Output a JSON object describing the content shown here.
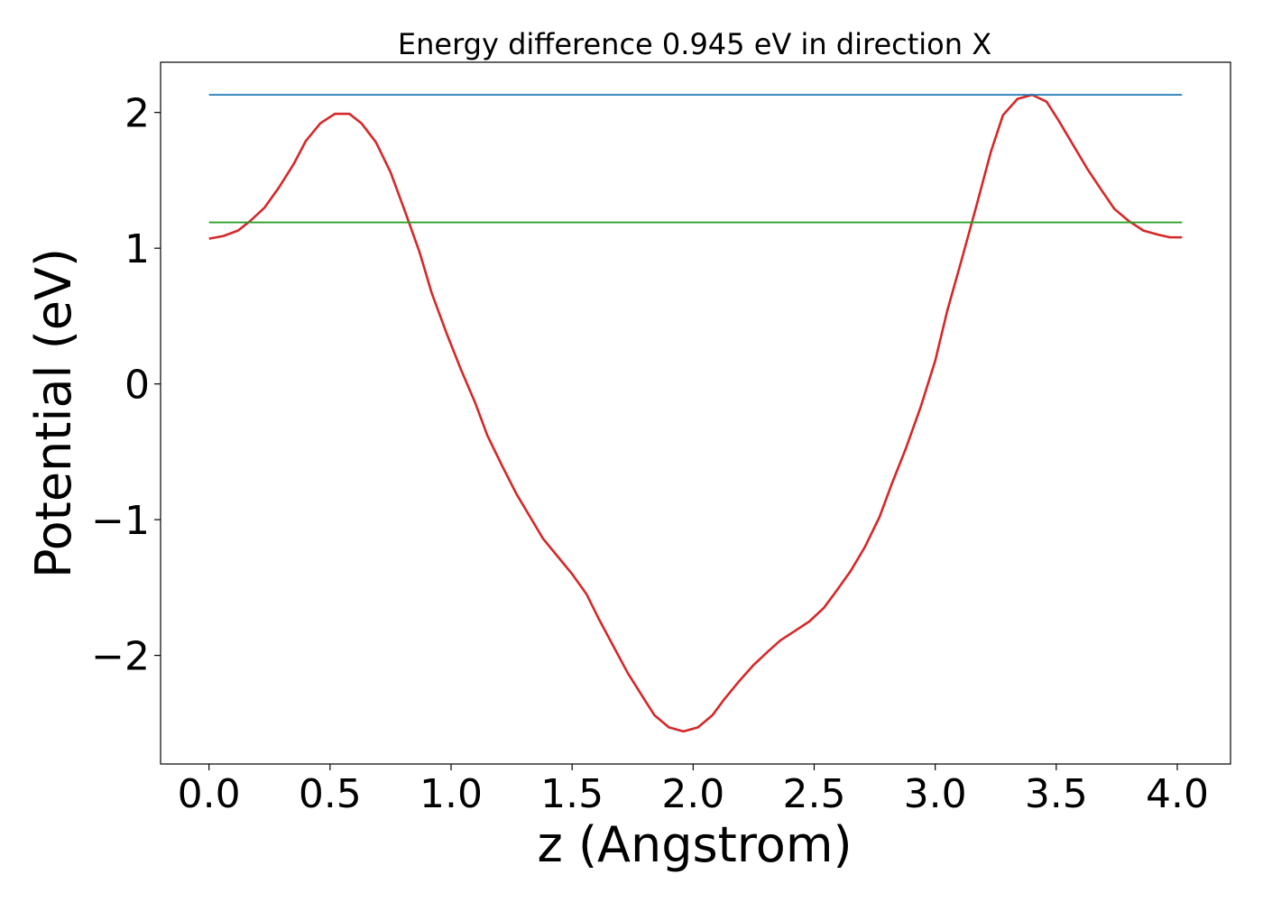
{
  "chart_data": {
    "type": "line",
    "title": "Energy difference 0.945 eV in direction X",
    "xlabel": "z (Angstrom)",
    "ylabel": "Potential (eV)",
    "xlim": [
      -0.2,
      4.22
    ],
    "ylim": [
      -2.8,
      2.37
    ],
    "xticks": [
      0.0,
      0.5,
      1.0,
      1.5,
      2.0,
      2.5,
      3.0,
      3.5,
      4.0
    ],
    "xtick_labels": [
      "0.0",
      "0.5",
      "1.0",
      "1.5",
      "2.0",
      "2.5",
      "3.0",
      "3.5",
      "4.0"
    ],
    "yticks": [
      -2,
      -1,
      0,
      1,
      2
    ],
    "ytick_labels": [
      "−2",
      "−1",
      "0",
      "1",
      "2"
    ],
    "grid": false,
    "series": [
      {
        "color": "#d62728",
        "x": [
          0.0,
          0.06,
          0.12,
          0.17,
          0.23,
          0.29,
          0.35,
          0.4,
          0.46,
          0.52,
          0.58,
          0.63,
          0.69,
          0.75,
          0.81,
          0.87,
          0.92,
          0.98,
          1.04,
          1.1,
          1.15,
          1.21,
          1.27,
          1.33,
          1.38,
          1.44,
          1.5,
          1.56,
          1.61,
          1.67,
          1.73,
          1.79,
          1.84,
          1.9,
          1.96,
          2.02,
          2.08,
          2.13,
          2.19,
          2.25,
          2.31,
          2.36,
          2.42,
          2.48,
          2.54,
          2.59,
          2.65,
          2.71,
          2.77,
          2.82,
          2.88,
          2.94,
          3.0,
          3.05,
          3.11,
          3.17,
          3.23,
          3.28,
          3.34,
          3.4,
          3.46,
          3.51,
          3.57,
          3.63,
          3.69,
          3.74,
          3.8,
          3.86,
          3.92,
          3.97,
          4.02
        ],
        "y": [
          1.07,
          1.09,
          1.13,
          1.2,
          1.3,
          1.45,
          1.62,
          1.79,
          1.92,
          1.99,
          1.99,
          1.92,
          1.78,
          1.56,
          1.27,
          0.97,
          0.67,
          0.38,
          0.11,
          -0.14,
          -0.38,
          -0.6,
          -0.81,
          -0.99,
          -1.14,
          -1.27,
          -1.4,
          -1.55,
          -1.73,
          -1.93,
          -2.13,
          -2.3,
          -2.44,
          -2.53,
          -2.56,
          -2.53,
          -2.44,
          -2.32,
          -2.19,
          -2.07,
          -1.97,
          -1.89,
          -1.82,
          -1.75,
          -1.65,
          -1.53,
          -1.38,
          -1.2,
          -0.98,
          -0.74,
          -0.47,
          -0.17,
          0.17,
          0.54,
          0.92,
          1.31,
          1.71,
          1.98,
          2.1,
          2.13,
          2.08,
          1.94,
          1.76,
          1.58,
          1.42,
          1.29,
          1.2,
          1.13,
          1.1,
          1.08,
          1.08
        ]
      },
      {
        "color": "#1f77b4",
        "x": [
          0.0,
          4.02
        ],
        "y": [
          2.13,
          2.13
        ]
      },
      {
        "color": "#2ca02c",
        "x": [
          0.0,
          4.02
        ],
        "y": [
          1.19,
          1.19
        ]
      }
    ]
  }
}
